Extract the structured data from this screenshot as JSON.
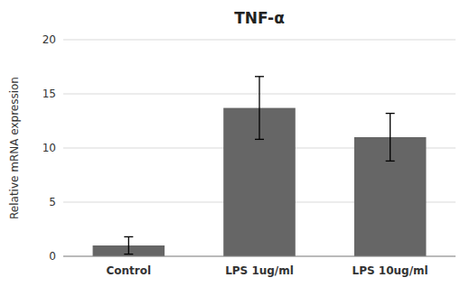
{
  "chart_data": {
    "type": "bar",
    "title": "TNF-α",
    "categories": [
      "Control",
      "LPS 1ug/ml",
      "LPS 10ug/ml"
    ],
    "values": [
      1.0,
      13.7,
      11.0
    ],
    "errors": [
      0.8,
      2.9,
      2.2
    ],
    "color": "#666666",
    "ylabel": "Relative mRNA expression",
    "ylim": [
      0,
      20
    ],
    "yticks": [
      0,
      5,
      10,
      15,
      20
    ],
    "grid": true
  }
}
